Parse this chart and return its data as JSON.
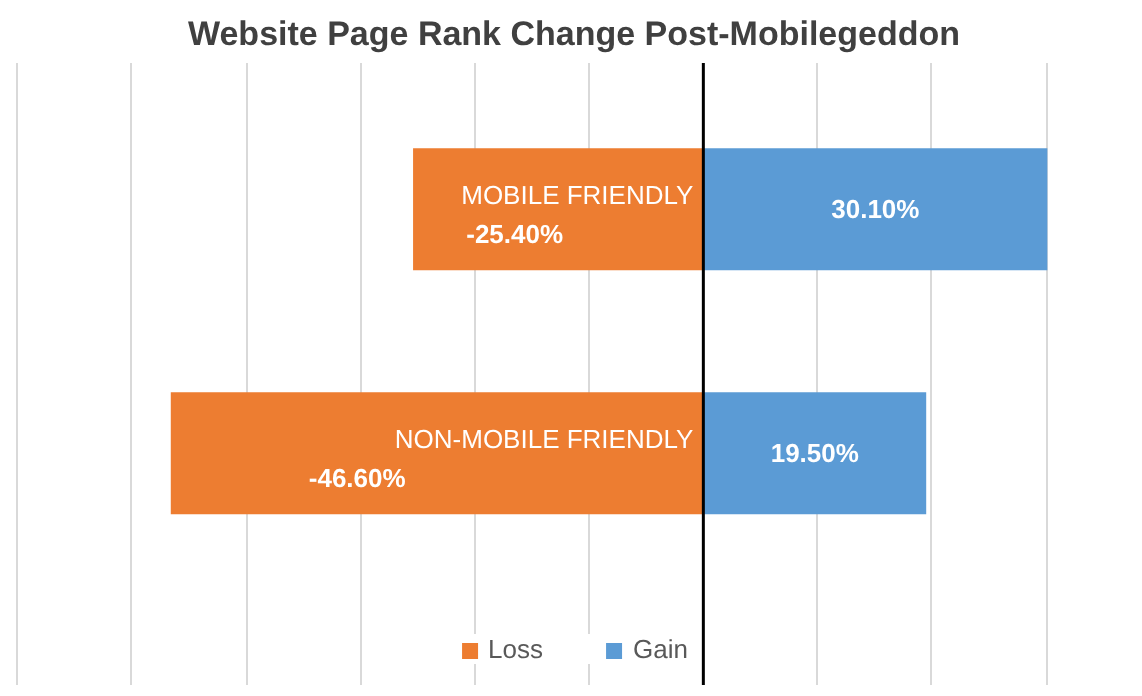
{
  "chart_data": {
    "type": "bar",
    "orientation": "horizontal",
    "stacked": true,
    "title": "Website Page Rank Change Post-Mobilegeddon",
    "categories": [
      "MOBILE FRIENDLY",
      "NON-MOBILE FRIENDLY"
    ],
    "series": [
      {
        "name": "Loss",
        "color": "#ed7d31",
        "values": [
          -25.4,
          -46.6
        ],
        "value_labels": [
          "-25.40%",
          "-46.60%"
        ]
      },
      {
        "name": "Gain",
        "color": "#5b9bd5",
        "values": [
          30.1,
          19.5
        ],
        "value_labels": [
          "30.10%",
          "19.50%"
        ]
      }
    ],
    "grid": "x",
    "tick_labels": false,
    "legend": "bottom"
  }
}
